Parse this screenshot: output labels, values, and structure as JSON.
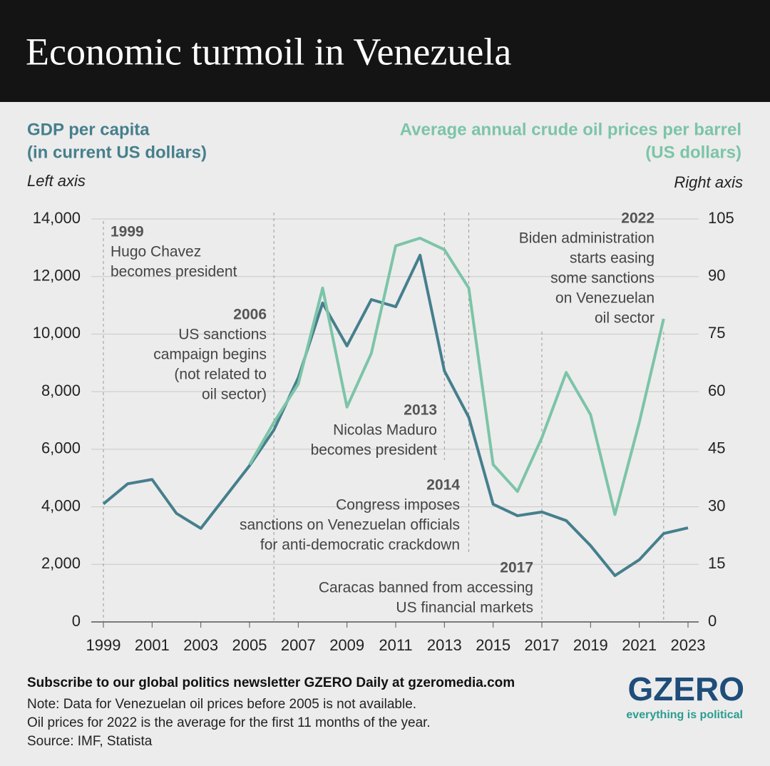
{
  "header": {
    "title": "Economic turmoil in Venezuela"
  },
  "chart_data": {
    "type": "line",
    "y_title": [
      "GDP per capita",
      "(in current US dollars)"
    ],
    "y2_title": [
      "Average annual crude oil prices per barrel",
      "(US dollars)"
    ],
    "y_note": "Left axis",
    "y2_note": "Right axis",
    "x": [
      1999,
      2000,
      2001,
      2002,
      2003,
      2004,
      2005,
      2006,
      2007,
      2008,
      2009,
      2010,
      2011,
      2012,
      2013,
      2014,
      2015,
      2016,
      2017,
      2018,
      2019,
      2020,
      2021,
      2022,
      2023
    ],
    "series": [
      {
        "color": "#467f8c",
        "values": [
          4100,
          4800,
          4950,
          3770,
          3250,
          4340,
          5430,
          6670,
          8480,
          11080,
          9590,
          11200,
          10950,
          12740,
          8720,
          7110,
          4090,
          3690,
          3820,
          3520,
          2650,
          1610,
          2160,
          3070,
          3270
        ]
      },
      {
        "color": "#7cc4a8",
        "axis": "y2",
        "values": [
          null,
          null,
          null,
          null,
          null,
          null,
          41,
          52,
          62,
          87,
          56,
          70,
          98,
          100,
          97,
          87,
          41,
          34,
          48,
          65,
          54,
          28,
          52,
          79,
          null
        ]
      }
    ],
    "xlim": [
      1999,
      2023
    ],
    "xticks": [
      1999,
      2001,
      2003,
      2005,
      2007,
      2009,
      2011,
      2013,
      2015,
      2017,
      2019,
      2021,
      2023
    ],
    "ylim": [
      0,
      14000
    ],
    "yticks": [
      0,
      {
        "value": 2000,
        "label": "2,000"
      },
      {
        "value": 4000,
        "label": "4,000"
      },
      {
        "value": 6000,
        "label": "6,000"
      },
      {
        "value": 8000,
        "label": "8,000"
      },
      {
        "value": 10000,
        "label": "10,000"
      },
      {
        "value": 12000,
        "label": "12,000"
      },
      {
        "value": 14000,
        "label": "14,000"
      }
    ],
    "y2lim": [
      0,
      105
    ],
    "y2ticks": [
      0,
      15,
      30,
      45,
      60,
      75,
      90,
      105
    ],
    "grid": true,
    "annotations": [
      {
        "year": 1999,
        "lines": [
          "Hugo Chavez",
          "becomes president"
        ]
      },
      {
        "year": 2006,
        "lines": [
          "US sanctions",
          "campaign begins",
          "(not related to",
          "oil sector)"
        ]
      },
      {
        "year": 2013,
        "lines": [
          "Nicolas Maduro",
          "becomes president"
        ]
      },
      {
        "year": 2014,
        "lines": [
          "Congress imposes",
          "sanctions on Venezuelan officials",
          "for anti-democratic crackdown"
        ]
      },
      {
        "year": 2017,
        "lines": [
          "Caracas banned from accessing",
          "US financial markets"
        ]
      },
      {
        "year": 2022,
        "lines": [
          "Biden administration",
          "starts easing",
          "some sanctions",
          "on Venezuelan",
          "oil sector"
        ]
      }
    ]
  },
  "footer": {
    "subscribe": "Subscribe to our global politics newsletter GZERO Daily at gzeromedia.com",
    "notes": [
      "Note: Data for Venezuelan oil prices before 2005 is not available.",
      "Oil prices for 2022 is the average for the first 11 months of the year.",
      "Source: IMF, Statista"
    ]
  },
  "logo": {
    "name": "GZERO",
    "tagline": "everything is political"
  }
}
